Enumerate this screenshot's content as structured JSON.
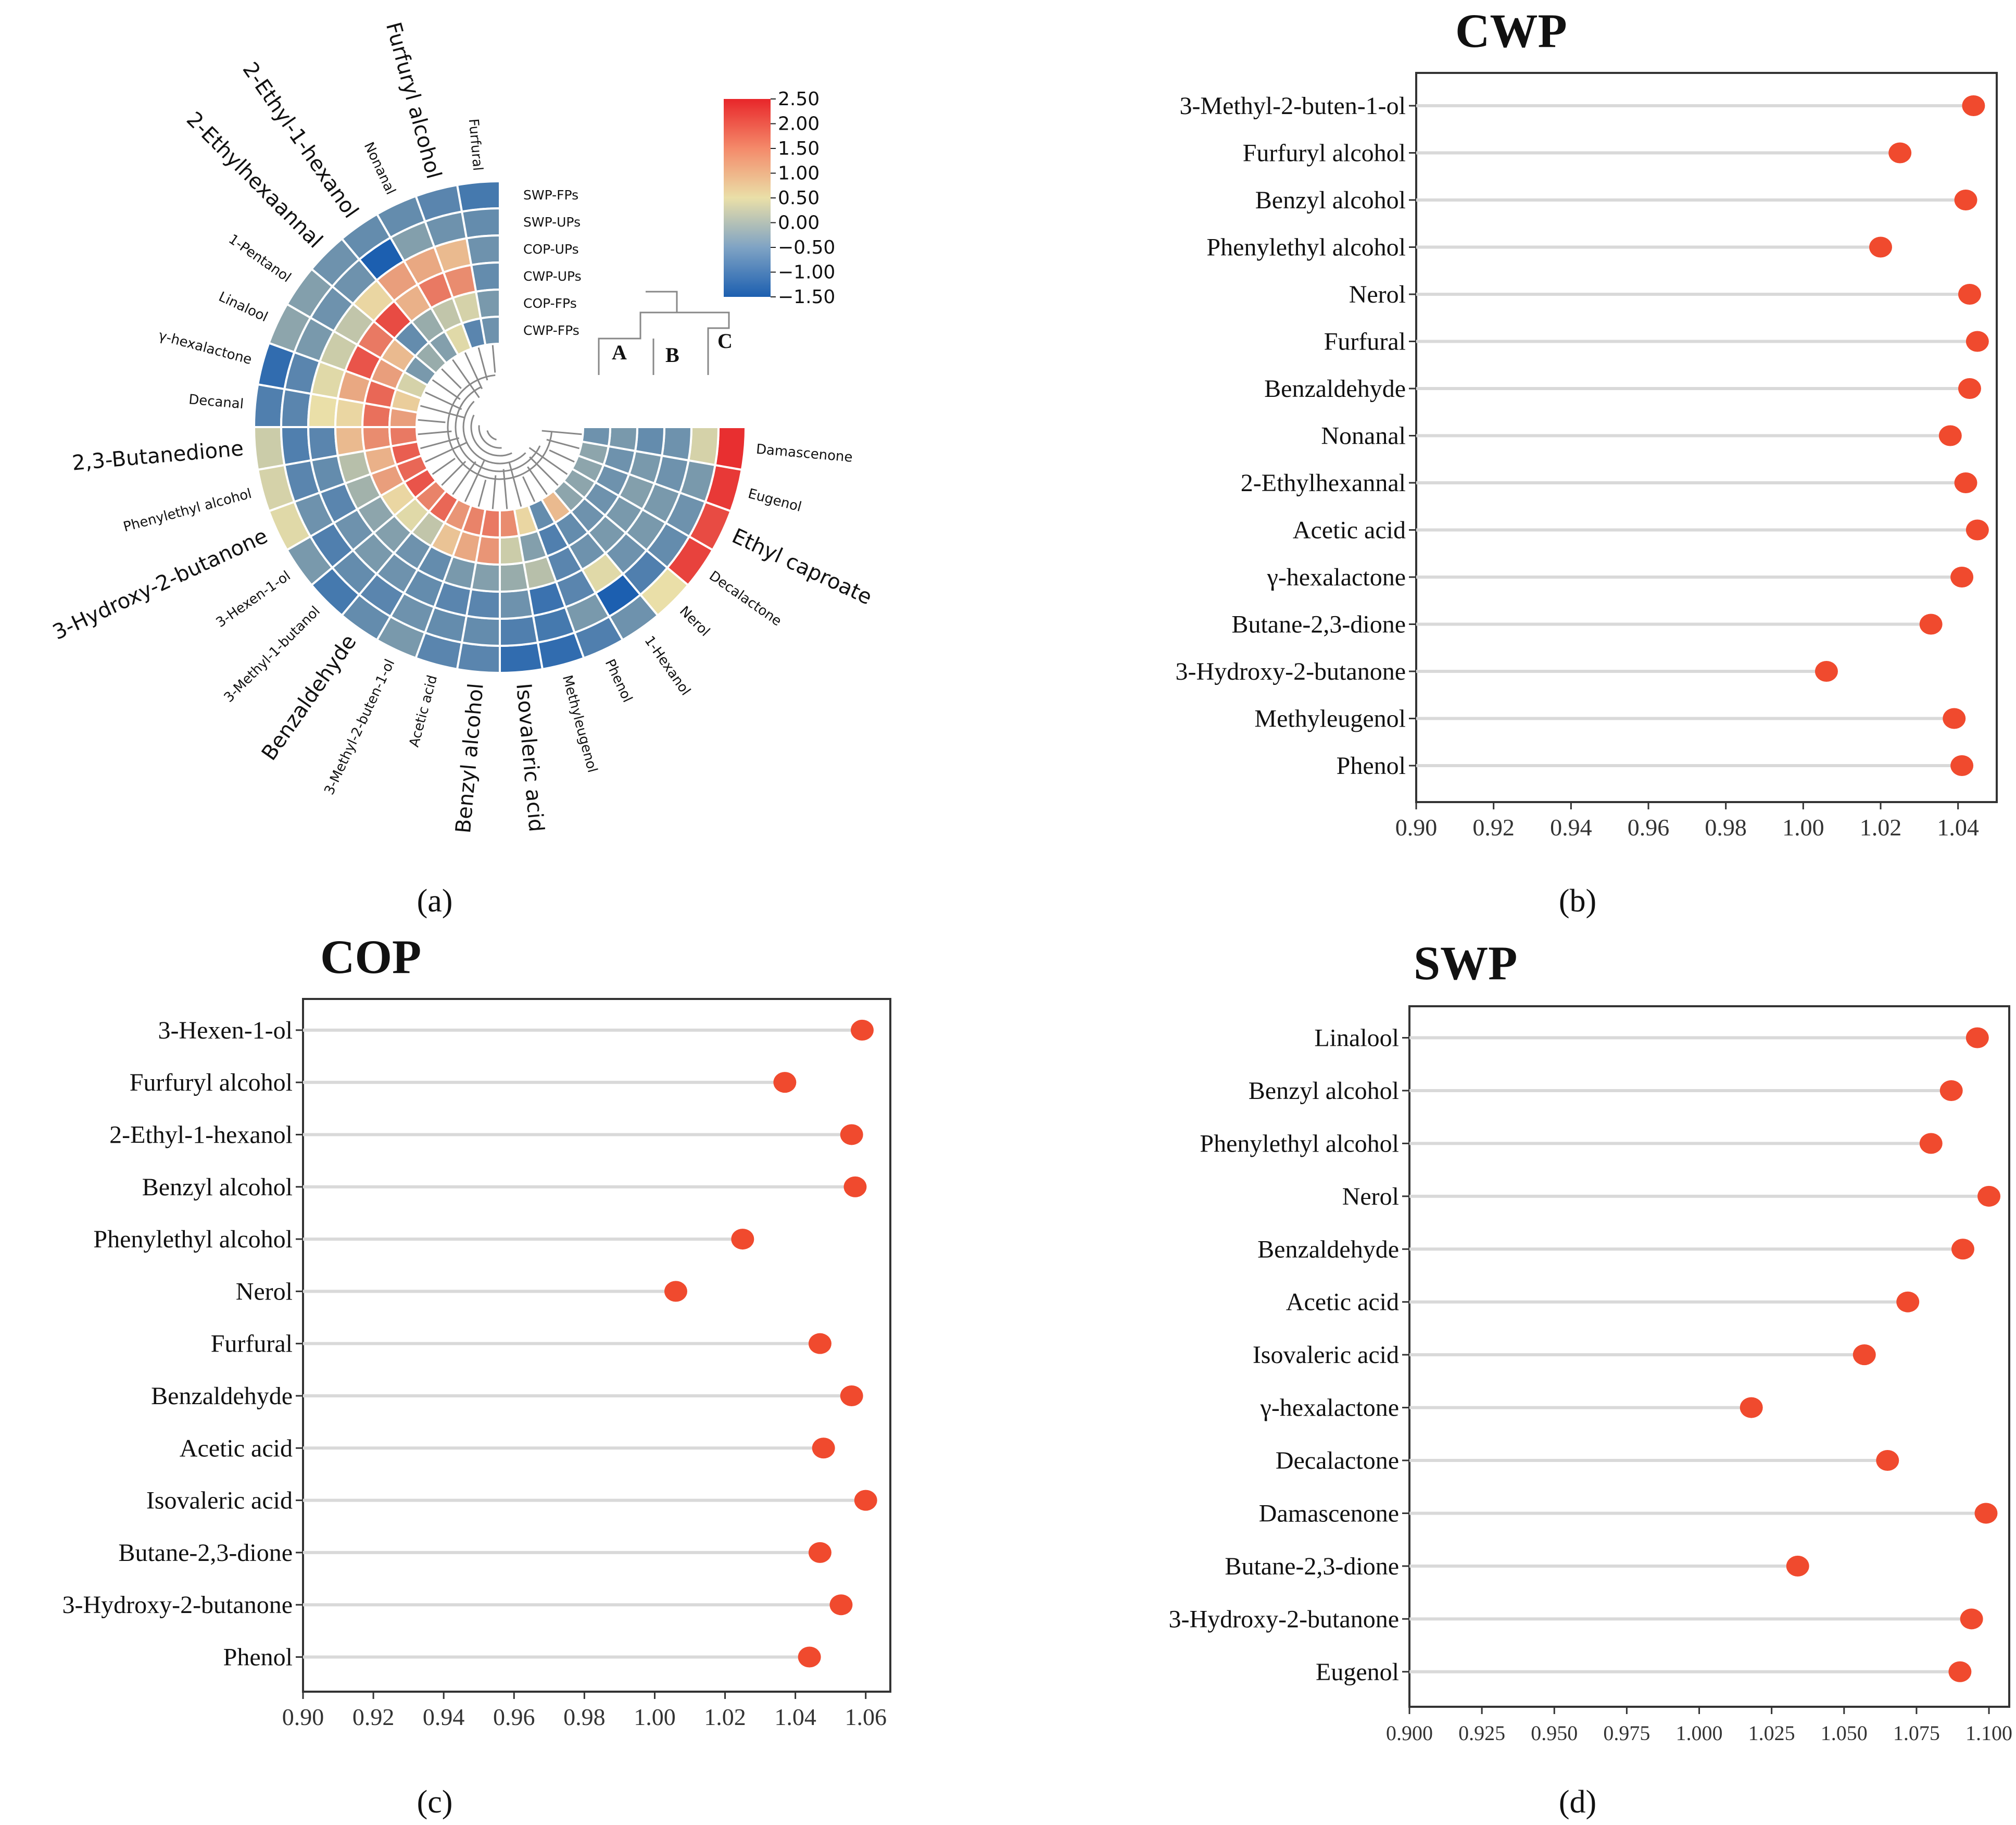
{
  "colors": {
    "dot": "#f04a2e",
    "stem": "#d9d9d9",
    "frame": "#333333",
    "text": "#111111",
    "scale_high": "#e8262a",
    "scale_mid": "#eadfa8",
    "scale_low": "#1c5fb0"
  },
  "panel_labels": [
    "(a)",
    "(b)",
    "(c)",
    "(d)"
  ],
  "chart_data": [
    {
      "panel": "a",
      "type": "heatmap",
      "layout": "circular",
      "rows": [
        "SWP-FPs",
        "SWP-UPs",
        "COP-UPs",
        "CWP-UPs",
        "COP-FPs",
        "CWP-FPs"
      ],
      "compounds": [
        "Furfural",
        "Furfuryl alcohol",
        "Nonanal",
        "2-Ethyl-1-hexanol",
        "2-Ethylhexaannal",
        "1-Pentanol",
        "Linalool",
        "γ-hexalactone",
        "Decanal",
        "2,3-Butanedione",
        "Phenylethyl alcohol",
        "3-Hydroxy-2-butanone",
        "3-Hexen-1-ol",
        "3-Methyl-1-butanol",
        "Benzaldehyde",
        "3-Methyl-2-buten-1-ol",
        "Acetic acid",
        "Benzyl alcohol",
        "Isovaleric acid",
        "Methyleugenol",
        "Phenol",
        "1-Hexanol",
        "Nerol",
        "Decalactone",
        "Ethyl caproate",
        "Eugenol",
        "Damascenone"
      ],
      "values": [
        [
          -1.1,
          -0.8,
          -0.7,
          -0.8,
          -0.6,
          -0.7
        ],
        [
          -0.9,
          -0.7,
          0.9,
          1.4,
          0.3,
          -0.9
        ],
        [
          -0.8,
          -0.5,
          1.1,
          1.6,
          0.1,
          0.4
        ],
        [
          -0.8,
          -1.5,
          1.2,
          1.0,
          -0.3,
          -0.5
        ],
        [
          -0.7,
          -0.7,
          0.6,
          2.1,
          -0.8,
          -0.3
        ],
        [
          -0.5,
          -0.7,
          0.1,
          1.6,
          0.9,
          -0.6
        ],
        [
          -0.4,
          -0.6,
          0.2,
          2.0,
          1.2,
          0.3
        ],
        [
          -1.3,
          -0.9,
          0.4,
          1.1,
          1.8,
          0.7
        ],
        [
          -1.0,
          -0.9,
          0.5,
          0.6,
          1.7,
          1.2
        ],
        [
          0.2,
          -1.0,
          -0.9,
          0.9,
          1.4,
          1.6
        ],
        [
          0.3,
          -0.9,
          -0.8,
          0.0,
          1.0,
          1.9
        ],
        [
          0.4,
          -0.7,
          -0.9,
          -0.2,
          1.2,
          1.8
        ],
        [
          -0.6,
          -1.0,
          -0.7,
          -0.4,
          0.6,
          2.0
        ],
        [
          -1.1,
          -0.8,
          -0.6,
          -0.5,
          0.4,
          1.5
        ],
        [
          -0.8,
          -0.9,
          -0.7,
          -0.7,
          0.1,
          1.8
        ],
        [
          -0.6,
          -0.7,
          -0.8,
          -0.8,
          0.8,
          1.3
        ],
        [
          -0.9,
          -0.8,
          -0.9,
          -0.6,
          1.1,
          1.5
        ],
        [
          -0.9,
          -0.8,
          -0.9,
          -0.5,
          1.3,
          1.6
        ],
        [
          -1.3,
          -1.0,
          -0.7,
          -0.3,
          0.2,
          1.4
        ],
        [
          -1.3,
          -1.1,
          -1.2,
          0.0,
          -0.5,
          0.6
        ],
        [
          -1.0,
          -0.6,
          -0.9,
          -0.9,
          -1.0,
          -0.8
        ],
        [
          -0.7,
          -1.5,
          0.4,
          -0.7,
          -0.8,
          0.9
        ],
        [
          0.5,
          -1.0,
          -0.7,
          -0.6,
          -0.7,
          -0.4
        ],
        [
          2.2,
          -0.8,
          -0.6,
          -0.6,
          -0.7,
          -0.4
        ],
        [
          2.1,
          -0.7,
          -0.6,
          -0.5,
          -0.7,
          -0.4
        ],
        [
          2.3,
          -0.6,
          -0.7,
          -0.6,
          -0.7,
          -0.4
        ],
        [
          2.4,
          0.3,
          -0.7,
          -0.8,
          -0.6,
          -0.7
        ]
      ],
      "colorbar": {
        "ticks": [
          "2.50",
          "2.00",
          "1.50",
          "1.00",
          "0.50",
          "0.00",
          "−0.50",
          "−1.00",
          "−1.50"
        ],
        "range": [
          -1.5,
          2.5
        ]
      },
      "clusters": [
        "A",
        "B",
        "C"
      ]
    },
    {
      "panel": "b",
      "type": "lollipop",
      "title": "CWP",
      "categories": [
        "3-Methyl-2-buten-1-ol",
        "Furfuryl alcohol",
        "Benzyl alcohol",
        "Phenylethyl alcohol",
        "Nerol",
        "Furfural",
        "Benzaldehyde",
        "Nonanal",
        "2-Ethylhexannal",
        "Acetic acid",
        "γ-hexalactone",
        "Butane-2,3-dione",
        "3-Hydroxy-2-butanone",
        "Methyleugenol",
        "Phenol"
      ],
      "values": [
        1.044,
        1.025,
        1.042,
        1.02,
        1.043,
        1.045,
        1.043,
        1.038,
        1.042,
        1.045,
        1.041,
        1.033,
        1.006,
        1.039,
        1.041
      ],
      "xlim": [
        0.9,
        1.05
      ],
      "xticks": [
        "0.90",
        "0.92",
        "0.94",
        "0.96",
        "0.98",
        "1.00",
        "1.02",
        "1.04"
      ]
    },
    {
      "panel": "c",
      "type": "lollipop",
      "title": "COP",
      "categories": [
        "3-Hexen-1-ol",
        "Furfuryl alcohol",
        "2-Ethyl-1-hexanol",
        "Benzyl alcohol",
        "Phenylethyl alcohol",
        "Nerol",
        "Furfural",
        "Benzaldehyde",
        "Acetic acid",
        "Isovaleric acid",
        "Butane-2,3-dione",
        "3-Hydroxy-2-butanone",
        "Phenol"
      ],
      "values": [
        1.059,
        1.037,
        1.056,
        1.057,
        1.025,
        1.006,
        1.047,
        1.056,
        1.048,
        1.06,
        1.047,
        1.053,
        1.044
      ],
      "xlim": [
        0.9,
        1.067
      ],
      "xticks": [
        "0.90",
        "0.92",
        "0.94",
        "0.96",
        "0.98",
        "1.00",
        "1.02",
        "1.04",
        "1.06"
      ]
    },
    {
      "panel": "d",
      "type": "lollipop",
      "title": "SWP",
      "categories": [
        "Linalool",
        "Benzyl alcohol",
        "Phenylethyl alcohol",
        "Nerol",
        "Benzaldehyde",
        "Acetic acid",
        "Isovaleric acid",
        "γ-hexalactone",
        "Decalactone",
        "Damascenone",
        "Butane-2,3-dione",
        "3-Hydroxy-2-butanone",
        "Eugenol"
      ],
      "values": [
        1.096,
        1.087,
        1.08,
        1.1,
        1.091,
        1.072,
        1.057,
        1.018,
        1.065,
        1.099,
        1.034,
        1.094,
        1.09
      ],
      "xlim": [
        0.9,
        1.107
      ],
      "xticks": [
        "0.900",
        "0.925",
        "0.950",
        "0.975",
        "1.000",
        "1.025",
        "1.050",
        "1.075",
        "1.100"
      ]
    }
  ]
}
